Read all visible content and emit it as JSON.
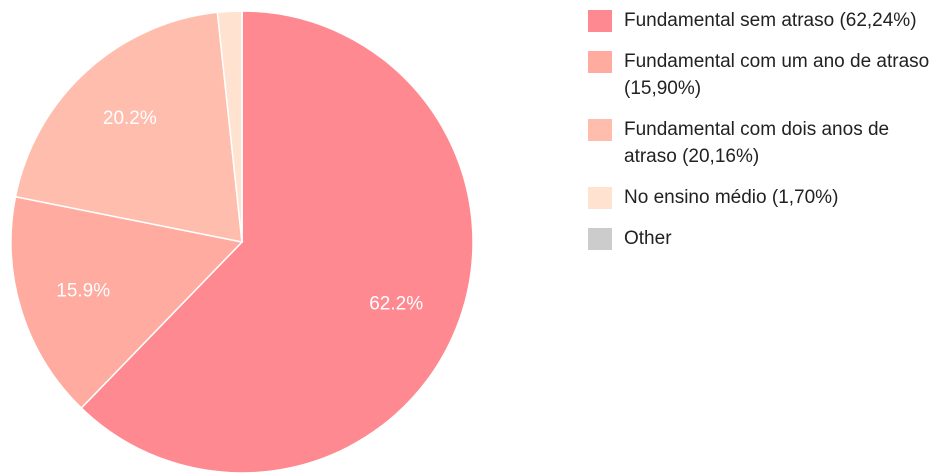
{
  "chart_data": {
    "type": "pie",
    "categories": [
      "Fundamental sem atraso (62,24%)",
      "Fundamental com um ano de atraso (15,90%)",
      "Fundamental com dois anos de atraso (20,16%)",
      "No ensino médio (1,70%)",
      "Other"
    ],
    "values": [
      62.24,
      15.9,
      20.16,
      1.7,
      0
    ],
    "value_labels": [
      "62.2%",
      "15.9%",
      "20.2%",
      null,
      null
    ],
    "colors": [
      "#ff8991",
      "#ffab9f",
      "#ffbdae",
      "#ffe2d0",
      "#cccccc"
    ],
    "legend": "right"
  }
}
